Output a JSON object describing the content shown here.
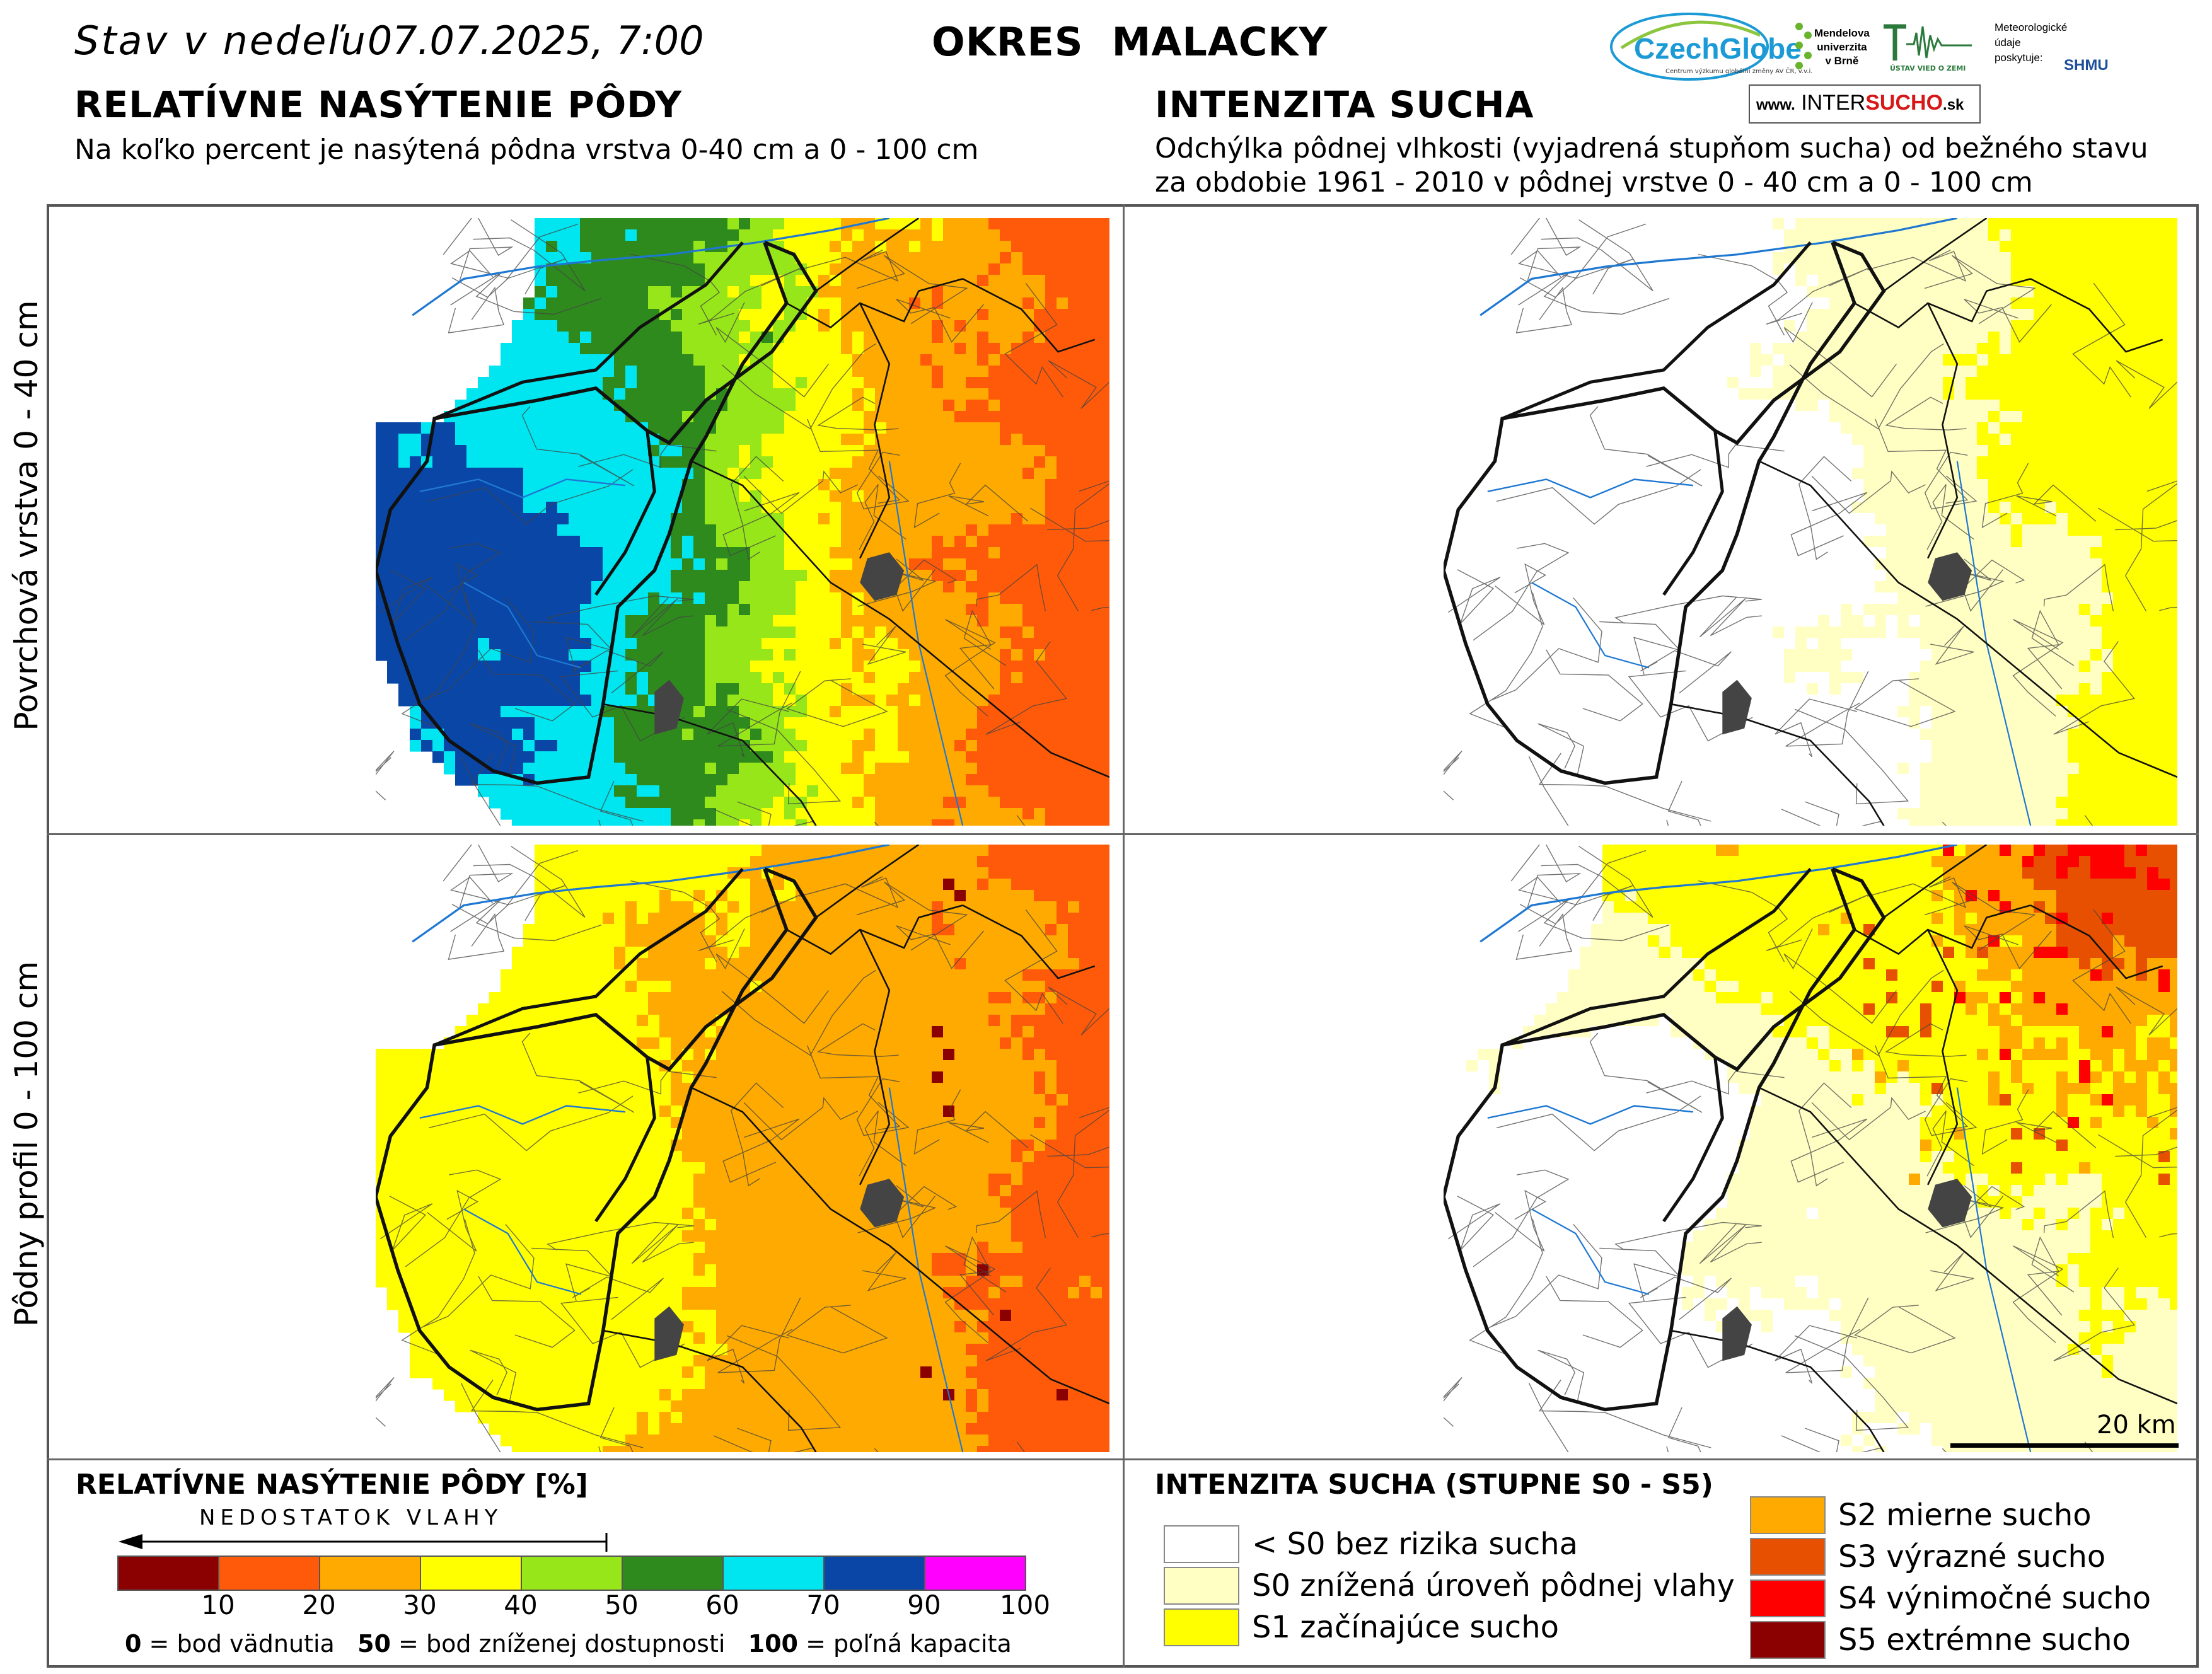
{
  "header": {
    "date_prefix": "Stav v nedeľu",
    "date_value": "07.07.2025, 7:00",
    "district": "OKRES  MALACKY"
  },
  "left_panel": {
    "title": "RELATÍVNE NASÝTENIE PÔDY",
    "subtitle": "Na koľko percent je nasýtená pôdna vrstva 0-40 cm a 0 - 100 cm"
  },
  "right_panel": {
    "title": "INTENZITA SUCHA",
    "subtitle_line1": "Odchýlka pôdnej vlhkosti (vyjadrená stupňom sucha) od bežného stavu",
    "subtitle_line2": "za obdobie 1961 - 2010 v pôdnej vrstve 0 - 40 cm a 0 - 100 cm"
  },
  "logos": {
    "czechglobe": "CzechGlobe",
    "czechglobe_sub": "Centrum výzkumu globální změny AV ČR, v.v.i.",
    "mendel": "Mendelova univerzita v Brně",
    "mendel_lines": [
      "Mendelova",
      "univerzita",
      "v Brně"
    ],
    "uvz": "ÚSTAV VIED O ZEMI",
    "shmu_credit_lines": [
      "Meteorologické",
      "údaje",
      "poskytuje:"
    ],
    "shmu": "SHMU",
    "intersucho_www": "www.",
    "intersucho_a": "INTER",
    "intersucho_b": "SUCHO",
    "intersucho_sk": ".sk"
  },
  "row_labels": {
    "top": "Povrchová vrstva 0 - 40 cm",
    "bottom": "Pôdny profil 0 - 100 cm"
  },
  "scale_bar": {
    "label": "20 km",
    "length_km": 20
  },
  "saturation_legend": {
    "title": "RELATÍVNE NASÝTENIE PÔDY [%]",
    "arrow_label": "NEDOSTATOK VLAHY",
    "bins": [
      {
        "from": 0,
        "to": 10,
        "color": "#8b0000"
      },
      {
        "from": 10,
        "to": 20,
        "color": "#ff5a0a"
      },
      {
        "from": 20,
        "to": 30,
        "color": "#ffaa00"
      },
      {
        "from": 30,
        "to": 40,
        "color": "#ffff00"
      },
      {
        "from": 40,
        "to": 50,
        "color": "#96e619"
      },
      {
        "from": 50,
        "to": 60,
        "color": "#2f8a1e"
      },
      {
        "from": 60,
        "to": 70,
        "color": "#00e6f0"
      },
      {
        "from": 70,
        "to": 90,
        "color": "#0a46a5"
      },
      {
        "from": 90,
        "to": 100,
        "color": "#ff00ff"
      }
    ],
    "ticks": [
      "10",
      "20",
      "30",
      "40",
      "50",
      "60",
      "70",
      "90",
      "100"
    ],
    "note": [
      {
        "value": "0",
        "text": " = bod vädnutia"
      },
      {
        "value": "50",
        "text": " = bod zníženej dostupnosti"
      },
      {
        "value": "100",
        "text": " = poľná kapacita"
      }
    ]
  },
  "drought_legend": {
    "title": "INTENZITA SUCHA (STUPNE S0 - S5)",
    "classes": [
      {
        "label": "< S0 bez rizika sucha",
        "color": "#ffffff"
      },
      {
        "label": "S0 znížená úroveň pôdnej vlahy",
        "color": "#ffffc4"
      },
      {
        "label": "S1 začínajúce sucho",
        "color": "#ffff00"
      },
      {
        "label": "S2 mierne sucho",
        "color": "#ffaa00"
      },
      {
        "label": "S3 výrazné sucho",
        "color": "#e65000"
      },
      {
        "label": "S4 výnimočné sucho",
        "color": "#ff0000"
      },
      {
        "label": "S5 extrémne sucho",
        "color": "#8b0000"
      }
    ]
  },
  "colors": {
    "boundary": "#111111",
    "cadastral": "#444444",
    "river": "#1e78d2",
    "town": "#444444"
  }
}
